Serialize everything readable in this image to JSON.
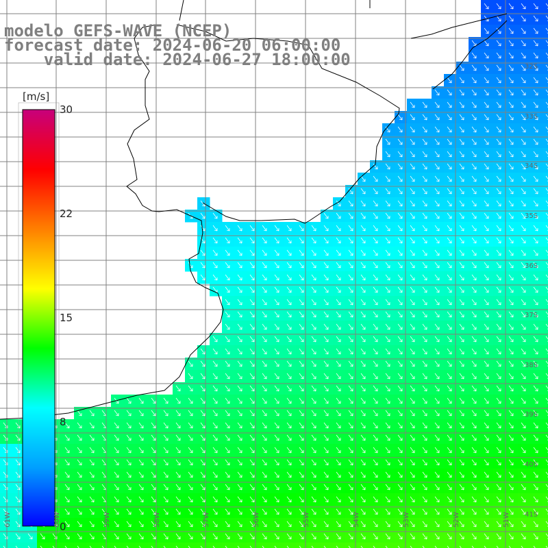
{
  "header": {
    "line1": "modelo GEFS-WAVE (NCEP)",
    "line2": "forecast date: 2024-06-20 06:00:00",
    "line3": "    valid date: 2024-06-27 18:00:00"
  },
  "colorbar": {
    "unit": "[m/s]",
    "ticks": [
      "30",
      "22",
      "15",
      "8",
      "0"
    ],
    "tick_values": [
      30,
      22,
      15,
      8,
      0
    ],
    "range": [
      0,
      30
    ],
    "colors": [
      "#0000ff",
      "#00a0ff",
      "#00ffff",
      "#00ff00",
      "#ffff00",
      "#ff8000",
      "#ff0000",
      "#c8007a"
    ]
  },
  "map": {
    "lat_labels": [
      "32S",
      "33S",
      "34S",
      "35S",
      "36S",
      "37S",
      "38S",
      "39S",
      "40S",
      "41S"
    ],
    "lon_labels": [
      "61W",
      "60W",
      "59W",
      "58W",
      "57W",
      "56W",
      "55W",
      "54W",
      "53W",
      "52W",
      "51W"
    ],
    "land_color": "#ffffff",
    "grid_color": "#808080",
    "arrow_color": "#ffffff"
  }
}
